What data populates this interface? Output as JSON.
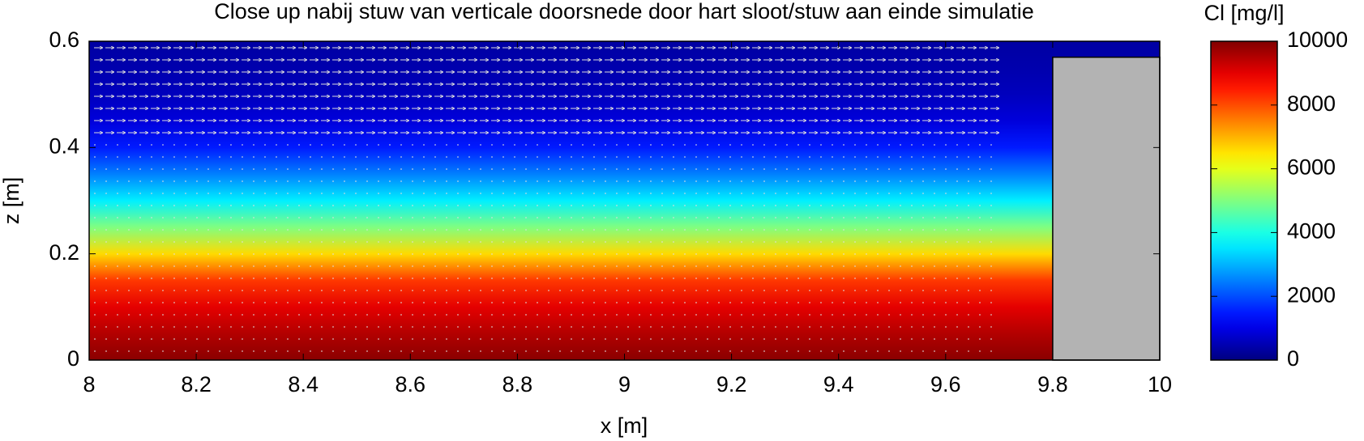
{
  "chart_data": {
    "type": "contour",
    "title": "Close up nabij stuw van verticale doorsnede door hart sloot/stuw aan einde simulatie",
    "x_label": "x [m]",
    "y_label": "z [m]",
    "colorbar_label": "Cl [mg/l]",
    "xlim": [
      8,
      10
    ],
    "xticks": [
      8,
      8.2,
      8.4,
      8.6,
      8.8,
      9,
      9.2,
      9.4,
      9.6,
      9.8,
      10
    ],
    "ylim": [
      0,
      0.6
    ],
    "yticks": [
      0,
      0.2,
      0.4,
      0.6
    ],
    "clim": [
      0,
      10000
    ],
    "cticks": [
      0,
      2000,
      4000,
      6000,
      8000,
      10000
    ],
    "colormap": "jet",
    "profile": {
      "z": [
        0,
        0.05,
        0.1,
        0.15,
        0.2,
        0.25,
        0.3,
        0.35,
        0.4,
        0.45,
        0.5,
        0.55,
        0.6
      ],
      "values": [
        9900,
        9500,
        9000,
        8200,
        6600,
        5000,
        3600,
        2500,
        1500,
        900,
        600,
        450,
        350
      ]
    },
    "weir": {
      "x": [
        9.8,
        10
      ],
      "z": [
        0,
        0.57
      ],
      "color": "#b3b3b3"
    }
  }
}
